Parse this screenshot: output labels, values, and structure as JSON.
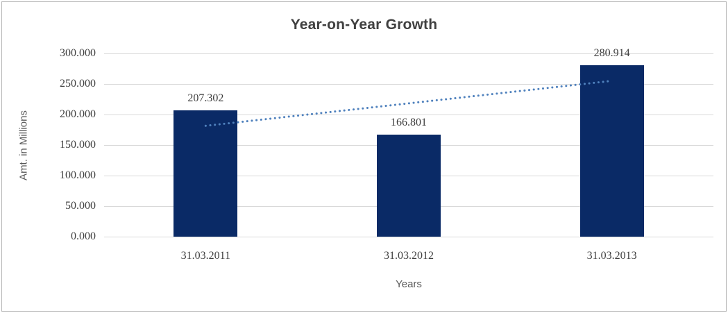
{
  "chart_data": {
    "type": "bar",
    "title": "Year-on-Year Growth",
    "categories": [
      "31.03.2011",
      "31.03.2012",
      "31.03.2013"
    ],
    "values": [
      207.302,
      166.801,
      280.914
    ],
    "data_labels": [
      "207.302",
      "166.801",
      "280.914"
    ],
    "xlabel": "Years",
    "ylabel": "Amt. in Millions",
    "ylim": [
      0,
      300
    ],
    "ytick_step": 50,
    "ytick_labels": [
      "0.000",
      "50.000",
      "100.000",
      "150.000",
      "200.000",
      "250.000",
      "300.000"
    ],
    "grid": true,
    "legend": "none",
    "colors": {
      "bar": "#0a2a66",
      "trendline": "#4f81bd",
      "gridline": "#d9d9d9",
      "title_text": "#404040",
      "tick_text": "#404040",
      "axis_title_text": "#595959",
      "frame_border": "#b5b5b5"
    },
    "trendline": {
      "type": "linear",
      "style": "dotted",
      "start_value": 181.5,
      "end_value": 255.1
    }
  }
}
